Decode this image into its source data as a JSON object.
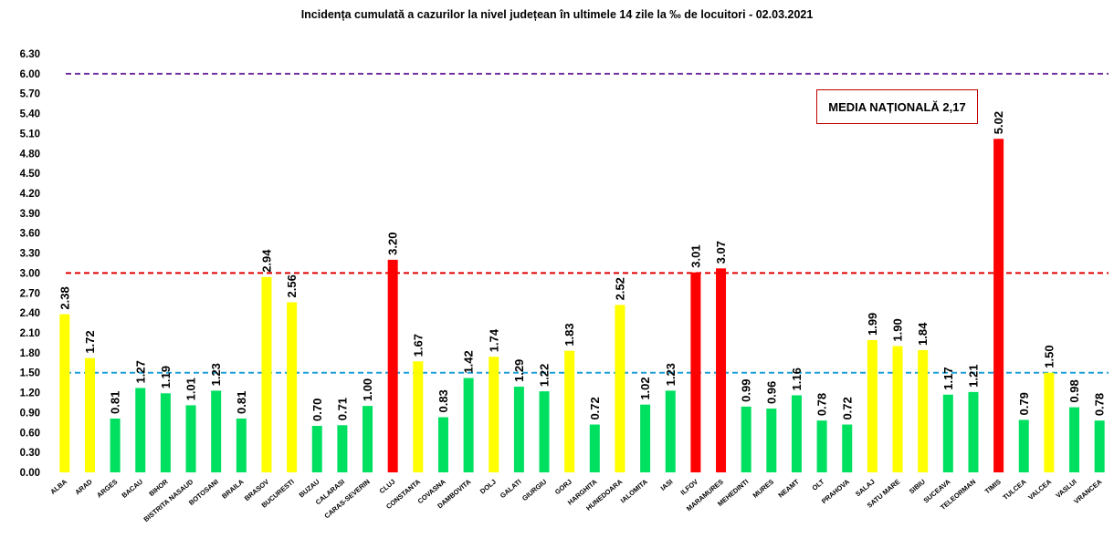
{
  "chart_data": {
    "type": "bar",
    "title": "Incidența cumulată a cazurilor la nivel județean în ultimele 14 zile la ‰ de locuitori - 02.03.2021",
    "xlabel": "",
    "ylabel": "",
    "ylim": [
      0,
      6.3
    ],
    "yticks": [
      "0.00",
      "0.30",
      "0.60",
      "0.90",
      "1.20",
      "1.50",
      "1.80",
      "2.10",
      "2.40",
      "2.70",
      "3.00",
      "3.30",
      "3.60",
      "3.90",
      "4.20",
      "4.50",
      "4.80",
      "5.10",
      "5.40",
      "5.70",
      "6.00",
      "6.30"
    ],
    "grid": false,
    "legend": "none",
    "categories": [
      "ALBA",
      "ARAD",
      "ARGES",
      "BACAU",
      "BIHOR",
      "BISTRITA NASAUD",
      "BOTOSANI",
      "BRAILA",
      "BRASOV",
      "BUCURESTI",
      "BUZAU",
      "CALARASI",
      "CARAS-SEVERIN",
      "CLUJ",
      "CONSTANTA",
      "COVASNA",
      "DAMBOVITA",
      "DOLJ",
      "GALATI",
      "GIURGIU",
      "GORJ",
      "HARGHITA",
      "HUNEDOARA",
      "IALOMITA",
      "IASI",
      "ILFOV",
      "MARAMURES",
      "MEHEDINTI",
      "MURES",
      "NEAMT",
      "OLT",
      "PRAHOVA",
      "SALAJ",
      "SATU MARE",
      "SIBIU",
      "SUCEAVA",
      "TELEORMAN",
      "TIMIS",
      "TULCEA",
      "VALCEA",
      "VASLUI",
      "VRANCEA"
    ],
    "values": [
      2.38,
      1.72,
      0.81,
      1.27,
      1.19,
      1.01,
      1.23,
      0.81,
      2.94,
      2.56,
      0.7,
      0.71,
      1.0,
      3.2,
      1.67,
      0.83,
      1.42,
      1.74,
      1.29,
      1.22,
      1.83,
      0.72,
      2.52,
      1.02,
      1.23,
      3.01,
      3.07,
      0.99,
      0.96,
      1.16,
      0.78,
      0.72,
      1.99,
      1.9,
      1.84,
      1.17,
      1.21,
      5.02,
      0.79,
      1.5,
      0.98,
      0.78
    ],
    "value_labels": [
      "2.38",
      "1.72",
      "0.81",
      "1.27",
      "1.19",
      "1.01",
      "1.23",
      "0.81",
      "2.94",
      "2.56",
      "0.70",
      "0.71",
      "1.00",
      "3.20",
      "1.67",
      "0.83",
      "1.42",
      "1.74",
      "1.29",
      "1.22",
      "1.83",
      "0.72",
      "2.52",
      "1.02",
      "1.23",
      "3.01",
      "3.07",
      "0.99",
      "0.96",
      "1.16",
      "0.78",
      "0.72",
      "1.99",
      "1.90",
      "1.84",
      "1.17",
      "1.21",
      "5.02",
      "0.79",
      "1.50",
      "0.98",
      "0.78"
    ],
    "reference_lines": [
      {
        "value": 6.0,
        "color": "#7030a0"
      },
      {
        "value": 3.0,
        "color": "#e00000"
      },
      {
        "value": 1.5,
        "color": "#1e9fd8"
      }
    ],
    "annotation": "MEDIA NAȚIONALĂ 2,17",
    "colors": {
      "green": "#00e060",
      "yellow": "#ffff00",
      "red": "#ff0000"
    }
  }
}
